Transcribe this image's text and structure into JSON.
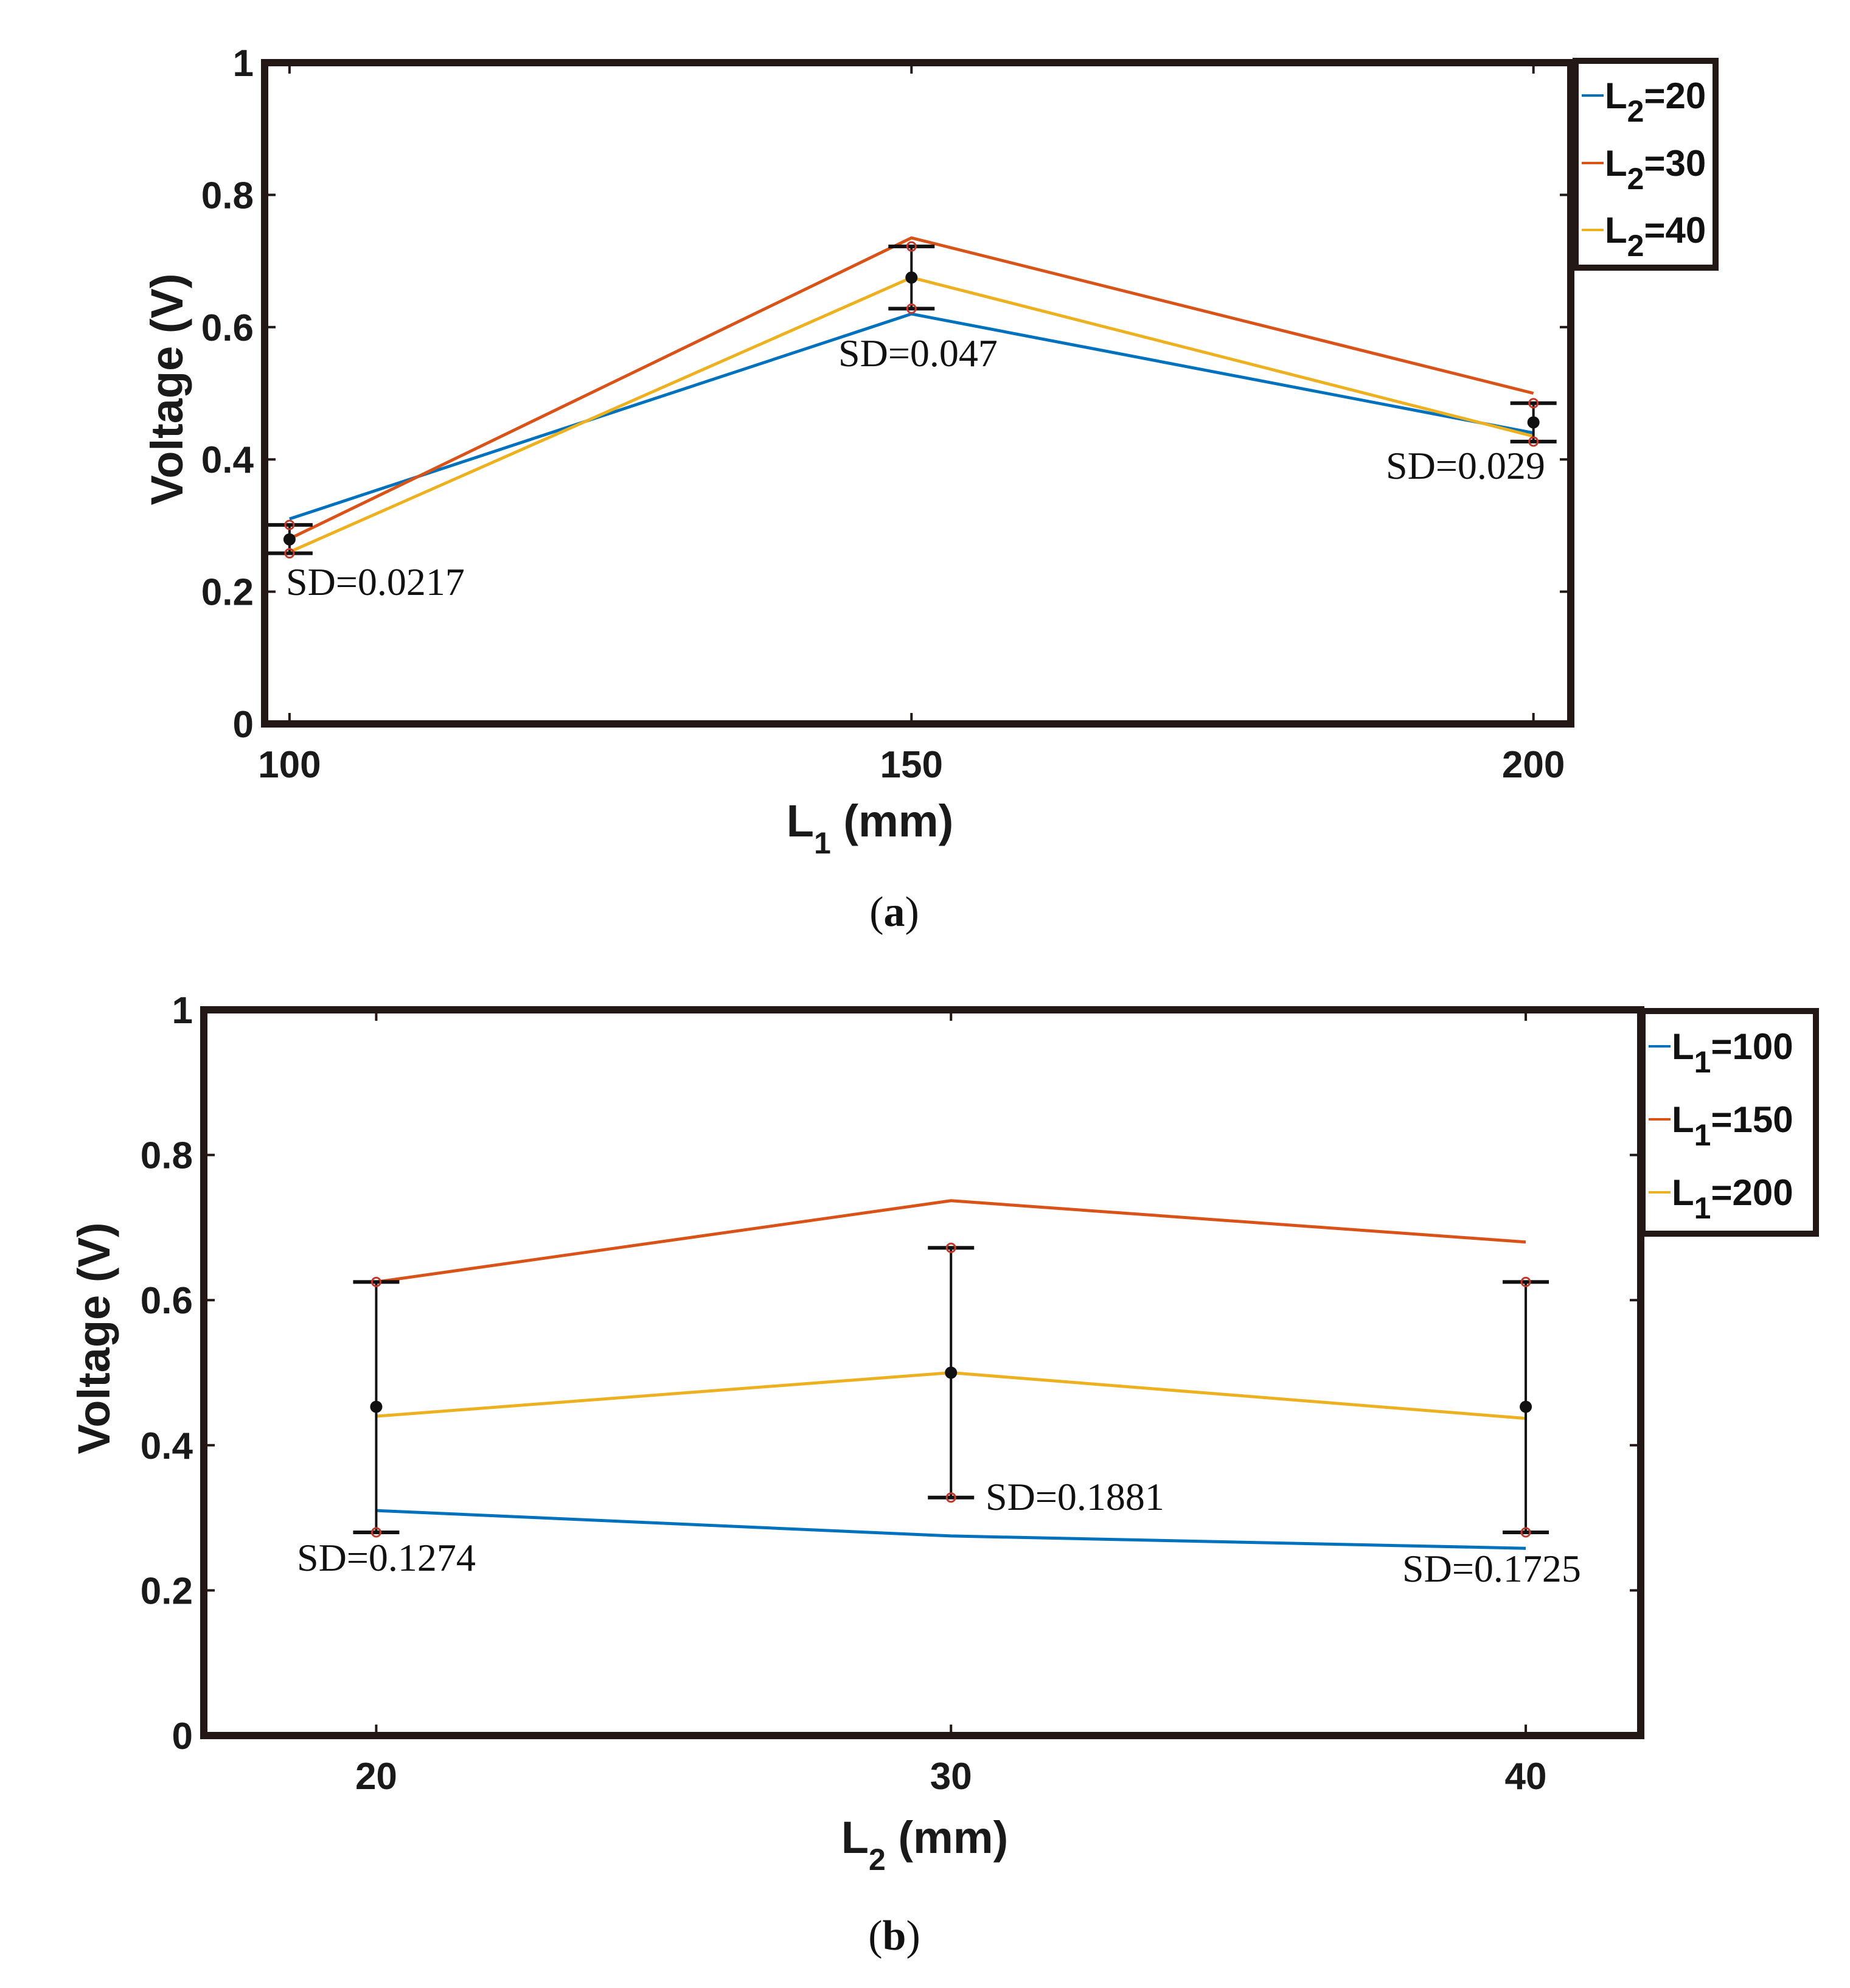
{
  "chart_data": [
    {
      "type": "line",
      "caption_letter": "a",
      "xlabel_main": "L",
      "xlabel_sub": "1",
      "xlabel_unit": " (mm)",
      "ylabel": "Voltage (V)",
      "x": [
        100,
        150,
        200
      ],
      "xticks": [
        "100",
        "150",
        "200"
      ],
      "xlim": [
        98,
        203
      ],
      "ylim": [
        0,
        1
      ],
      "yticks": [
        "0",
        "0.2",
        "0.4",
        "0.6",
        "0.8",
        "1"
      ],
      "series": [
        {
          "name": "20",
          "legend_main": "L",
          "legend_sub": "2",
          "legend_value": "=20",
          "color": "#0072BD",
          "values": [
            0.31,
            0.62,
            0.44
          ]
        },
        {
          "name": "30",
          "legend_main": "L",
          "legend_sub": "2",
          "legend_value": "=30",
          "color": "#D95319",
          "values": [
            0.28,
            0.735,
            0.5
          ]
        },
        {
          "name": "40",
          "legend_main": "L",
          "legend_sub": "2",
          "legend_value": "=40",
          "color": "#EDB120",
          "values": [
            0.26,
            0.675,
            0.435
          ]
        }
      ],
      "error_bars": [
        {
          "x": 100,
          "mean": 0.279,
          "low": 0.258,
          "high": 0.301
        },
        {
          "x": 150,
          "mean": 0.675,
          "low": 0.628,
          "high": 0.722
        },
        {
          "x": 200,
          "mean": 0.456,
          "low": 0.427,
          "high": 0.485
        }
      ],
      "annotations": [
        "SD=0.0217",
        "SD=0.047",
        "SD=0.029"
      ]
    },
    {
      "type": "line",
      "caption_letter": "b",
      "xlabel_main": "L",
      "xlabel_sub": "2",
      "xlabel_unit": " (mm)",
      "ylabel": "Voltage (V)",
      "x": [
        20,
        30,
        40
      ],
      "xticks": [
        "20",
        "30",
        "40"
      ],
      "xlim": [
        17,
        42
      ],
      "ylim": [
        0,
        1
      ],
      "yticks": [
        "0",
        "0.2",
        "0.4",
        "0.6",
        "0.8",
        "1"
      ],
      "series": [
        {
          "name": "100",
          "legend_main": "L",
          "legend_sub": "1",
          "legend_value": "=100",
          "color": "#0072BD",
          "values": [
            0.31,
            0.275,
            0.258
          ]
        },
        {
          "name": "150",
          "legend_main": "L",
          "legend_sub": "1",
          "legend_value": "=150",
          "color": "#D95319",
          "values": [
            0.625,
            0.737,
            0.68
          ]
        },
        {
          "name": "200",
          "legend_main": "L",
          "legend_sub": "1",
          "legend_value": "=200",
          "color": "#EDB120",
          "values": [
            0.44,
            0.5,
            0.437
          ]
        }
      ],
      "error_bars": [
        {
          "x": 20,
          "mean": 0.453,
          "low": 0.28,
          "high": 0.625
        },
        {
          "x": 30,
          "mean": 0.5,
          "low": 0.328,
          "high": 0.672
        },
        {
          "x": 40,
          "mean": 0.453,
          "low": 0.28,
          "high": 0.625
        }
      ],
      "annotations": [
        "SD=0.1274",
        "SD=0.1881",
        "SD=0.1725"
      ]
    }
  ]
}
